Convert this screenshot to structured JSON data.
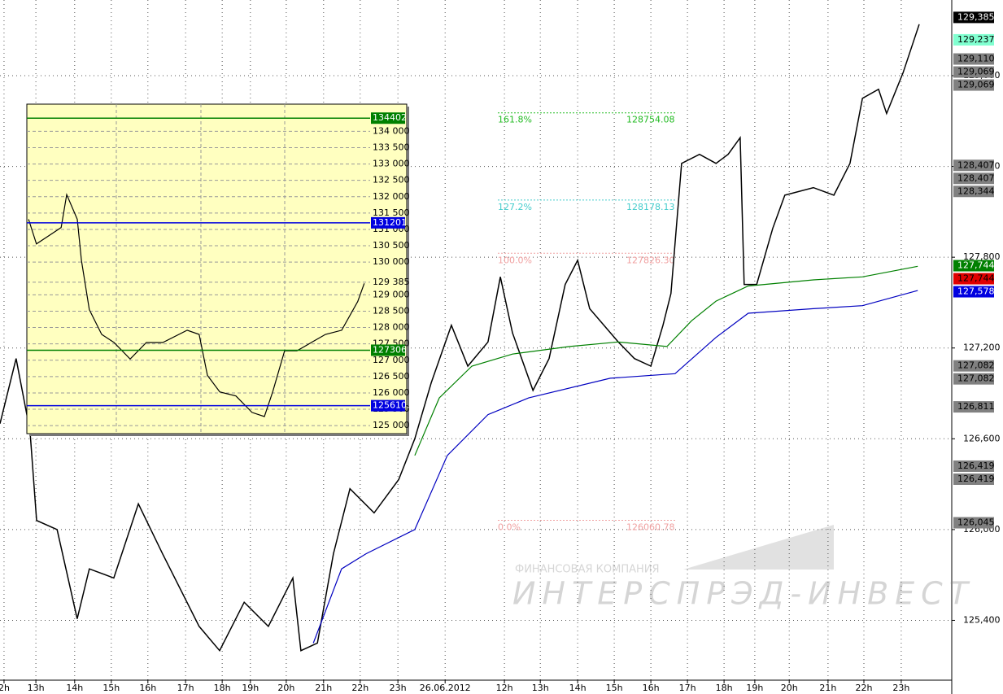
{
  "chart_data": [
    {
      "type": "line",
      "watermark": {
        "company": "ФИНАНСОВАЯ КОМПАНИЯ",
        "brand": "ИНТЕРСПРЭД-ИНВЕСТ"
      },
      "xlim": [
        0,
        26
      ],
      "ylim": [
        125.01,
        129.5
      ],
      "grid": true,
      "xticks": [
        {
          "value": 0.11,
          "label": "2h"
        },
        {
          "value": 0.98,
          "label": "13h"
        },
        {
          "value": 2.04,
          "label": "14h"
        },
        {
          "value": 3.04,
          "label": "15h"
        },
        {
          "value": 4.04,
          "label": "16h"
        },
        {
          "value": 5.07,
          "label": "17h"
        },
        {
          "value": 6.07,
          "label": "18h"
        },
        {
          "value": 6.84,
          "label": "19h"
        },
        {
          "value": 7.82,
          "label": "20h"
        },
        {
          "value": 8.84,
          "label": "21h"
        },
        {
          "value": 9.84,
          "label": "22h"
        },
        {
          "value": 10.87,
          "label": "23h"
        },
        {
          "value": 12.16,
          "label": "26.06.2012"
        },
        {
          "value": 13.78,
          "label": "12h"
        },
        {
          "value": 14.76,
          "label": "13h"
        },
        {
          "value": 15.78,
          "label": "14h"
        },
        {
          "value": 16.78,
          "label": "15h"
        },
        {
          "value": 17.78,
          "label": "16h"
        },
        {
          "value": 18.78,
          "label": "17h"
        },
        {
          "value": 19.78,
          "label": "18h"
        },
        {
          "value": 20.62,
          "label": "19h"
        },
        {
          "value": 21.56,
          "label": "20h"
        },
        {
          "value": 22.62,
          "label": "21h"
        },
        {
          "value": 23.6,
          "label": "22h"
        },
        {
          "value": 24.62,
          "label": "23h"
        }
      ],
      "yticks": [
        {
          "value": 125.4,
          "label": "125,400"
        },
        {
          "value": 126.0,
          "label": "126,000"
        },
        {
          "value": 126.6,
          "label": "126,600"
        },
        {
          "value": 127.2,
          "label": "127,200"
        },
        {
          "value": 127.8,
          "label": "127,800"
        },
        {
          "value": 128.4,
          "label": "128,400"
        },
        {
          "value": 129.0,
          "label": "129,000"
        }
      ],
      "series": [
        {
          "name": "Price",
          "color": "#000000",
          "x": [
            0,
            0.44,
            0.82,
            1.0,
            1.56,
            2.11,
            2.44,
            3.11,
            3.78,
            4.44,
            5.44,
            6.0,
            6.67,
            7.33,
            8.0,
            8.22,
            8.67,
            9.11,
            9.56,
            10.22,
            10.89,
            11.33,
            11.78,
            12.33,
            12.78,
            13.33,
            13.67,
            14.0,
            14.56,
            15.0,
            15.44,
            15.78,
            16.11,
            16.89,
            17.33,
            17.78,
            18.11,
            18.33,
            18.62,
            19.11,
            19.56,
            19.89,
            20.22,
            20.33,
            20.67,
            21.11,
            21.44,
            22.22,
            22.78,
            23.22,
            23.56,
            24.0,
            24.22,
            24.67,
            25.11
          ],
          "values": [
            126.7,
            127.13,
            126.65,
            126.06,
            126.0,
            125.41,
            125.74,
            125.68,
            126.17,
            125.84,
            125.36,
            125.2,
            125.52,
            125.36,
            125.68,
            125.2,
            125.25,
            125.84,
            126.27,
            126.11,
            126.33,
            126.6,
            126.97,
            127.35,
            127.08,
            127.24,
            127.67,
            127.3,
            126.92,
            127.13,
            127.62,
            127.78,
            127.46,
            127.24,
            127.13,
            127.08,
            127.35,
            127.56,
            128.42,
            128.48,
            128.42,
            128.48,
            128.59,
            127.62,
            127.62,
            127.99,
            128.21,
            128.26,
            128.21,
            128.42,
            128.85,
            128.91,
            128.75,
            129.02,
            129.34
          ]
        },
        {
          "name": "MA fast",
          "color": "#008000",
          "x": [
            11.33,
            12.0,
            12.89,
            14.0,
            15.56,
            16.89,
            18.22,
            18.89,
            19.56,
            20.44,
            22.22,
            23.56,
            25.07
          ],
          "values": [
            126.49,
            126.87,
            127.08,
            127.16,
            127.21,
            127.24,
            127.21,
            127.38,
            127.51,
            127.61,
            127.65,
            127.67,
            127.74
          ]
        },
        {
          "name": "MA slow",
          "color": "#0000c0",
          "x": [
            8.56,
            9.33,
            10.0,
            11.33,
            12.22,
            13.33,
            14.44,
            16.67,
            18.44,
            19.56,
            20.44,
            22.22,
            23.56,
            25.07
          ],
          "values": [
            125.25,
            125.74,
            125.84,
            126.0,
            126.49,
            126.76,
            126.87,
            127.0,
            127.03,
            127.27,
            127.43,
            127.46,
            127.48,
            127.58
          ]
        }
      ],
      "fib_levels": [
        {
          "level": "161.8%",
          "price": 128.754,
          "price_label": "128754.08",
          "color": "#22bb22"
        },
        {
          "level": "127.2%",
          "price": 128.178,
          "price_label": "128178.13",
          "color": "#44cccc"
        },
        {
          "level": "100.0%",
          "price": 127.826,
          "price_label": "127826.30",
          "color": "#f0a0a0"
        },
        {
          "level": "0.0%",
          "price": 126.061,
          "price_label": "126060.78",
          "color": "#f0a0a0"
        }
      ],
      "price_tags": [
        {
          "value": 129.385,
          "label": "129,385",
          "color": "#000000",
          "text_color": "#ffffff"
        },
        {
          "value": 129.237,
          "label": "129,237",
          "color": "#80ffd0",
          "text_color": "#000000"
        },
        {
          "value": 129.11,
          "label": "129,110",
          "color": "#808080",
          "text_color": "#000000"
        },
        {
          "value": 129.069,
          "label": "129,069",
          "color": "#808080",
          "text_color": "#000000"
        },
        {
          "value": 129.069,
          "label": "129,069",
          "color": "#808080",
          "text_color": "#000000"
        },
        {
          "value": 128.407,
          "label": "128,407",
          "color": "#808080",
          "text_color": "#000000"
        },
        {
          "value": 128.407,
          "label": "128,407",
          "color": "#808080",
          "text_color": "#000000"
        },
        {
          "value": 128.344,
          "label": "128,344",
          "color": "#808080",
          "text_color": "#000000"
        },
        {
          "value": 127.744,
          "label": "127,744",
          "color": "#008000",
          "text_color": "#ffffff"
        },
        {
          "value": 127.744,
          "label": "127,744",
          "color": "#e00000",
          "text_color": "#000000"
        },
        {
          "value": 127.578,
          "label": "127,578",
          "color": "#0000e0",
          "text_color": "#ffffff"
        },
        {
          "value": 127.082,
          "label": "127,082",
          "color": "#808080",
          "text_color": "#000000"
        },
        {
          "value": 127.082,
          "label": "127,082",
          "color": "#808080",
          "text_color": "#000000"
        },
        {
          "value": 126.811,
          "label": "126,811",
          "color": "#808080",
          "text_color": "#000000"
        },
        {
          "value": 126.419,
          "label": "126,419",
          "color": "#808080",
          "text_color": "#000000"
        },
        {
          "value": 126.419,
          "label": "126,419",
          "color": "#808080",
          "text_color": "#000000"
        },
        {
          "value": 126.045,
          "label": "126,045",
          "color": "#808080",
          "text_color": "#000000"
        }
      ]
    },
    {
      "type": "line",
      "xlim": [
        0,
        100
      ],
      "ylim": [
        124755,
        134830
      ],
      "grid": true,
      "yticks": [
        {
          "value": 125000,
          "label": "125 000"
        },
        {
          "value": 125500,
          "label": "125 500"
        },
        {
          "value": 126000,
          "label": "126 000"
        },
        {
          "value": 126500,
          "label": "126 500"
        },
        {
          "value": 127000,
          "label": "127 000"
        },
        {
          "value": 127500,
          "label": "127 500"
        },
        {
          "value": 128000,
          "label": "128 000"
        },
        {
          "value": 128500,
          "label": "128 500"
        },
        {
          "value": 129000,
          "label": "129 000"
        },
        {
          "value": 129385,
          "label": "129 385"
        },
        {
          "value": 130000,
          "label": "130 000"
        },
        {
          "value": 130500,
          "label": "130 500"
        },
        {
          "value": 131000,
          "label": "131 000"
        },
        {
          "value": 131500,
          "label": "131 500"
        },
        {
          "value": 132000,
          "label": "132 000"
        },
        {
          "value": 132500,
          "label": "132 500"
        },
        {
          "value": 133000,
          "label": "133 000"
        },
        {
          "value": 133500,
          "label": "133 500"
        },
        {
          "value": 134000,
          "label": "134 000"
        }
      ],
      "series": [
        {
          "name": "Price",
          "color": "#000000",
          "x": [
            0.5,
            2.8,
            6.4,
            10.0,
            11.6,
            14.7,
            15.9,
            18.2,
            21.8,
            25.4,
            30.1,
            34.8,
            39.6,
            46.7,
            50.2,
            52.6,
            56.2,
            60.9,
            65.6,
            69.2,
            71.6,
            75.1,
            78.7,
            87.0,
            91.7,
            96.4,
            98.3
          ],
          "values": [
            131310,
            130556,
            130807,
            131058,
            132063,
            131310,
            130053,
            128545,
            127791,
            127540,
            127037,
            127540,
            127540,
            127917,
            127791,
            126535,
            126032,
            125907,
            125404,
            125278,
            126032,
            127289,
            127289,
            127791,
            127917,
            128797,
            129349
          ]
        }
      ],
      "price_tags": [
        {
          "value": 134402,
          "label": "134402",
          "color": "#008000",
          "text_color": "#ffffff"
        },
        {
          "value": 131201,
          "label": "131201",
          "color": "#0000e0",
          "text_color": "#ffffff"
        },
        {
          "value": 127306,
          "label": "127306",
          "color": "#008000",
          "text_color": "#ffffff"
        },
        {
          "value": 125610,
          "label": "125610.",
          "color": "#0000e0",
          "text_color": "#ffffff"
        }
      ]
    }
  ]
}
